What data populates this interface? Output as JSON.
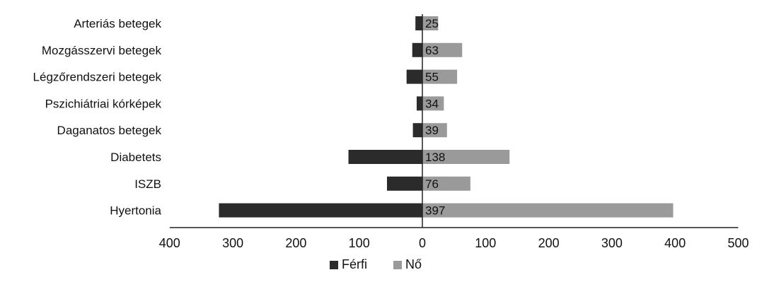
{
  "chart_data": {
    "type": "bar",
    "orientation": "horizontal",
    "categories": [
      "Arteriás betegek",
      "Mozgásszervi betegek",
      "Légzőrendszeri betegek",
      "Pszichiátriai kórképek",
      "Daganatos betegek",
      "Diabetets",
      "ISZB",
      "Hyertonia"
    ],
    "series": [
      {
        "name": "Férfi",
        "color": "#2b2b2b",
        "values": [
          11,
          16,
          25,
          9,
          15,
          117,
          56,
          322
        ],
        "labels": [
          "",
          "",
          "",
          "",
          "",
          "",
          "",
          ""
        ]
      },
      {
        "name": "Nő",
        "color": "#9a9a9a",
        "values": [
          25,
          63,
          55,
          34,
          39,
          138,
          76,
          397
        ],
        "labels": [
          "25",
          "63",
          "55",
          "34",
          "39",
          "138",
          "76",
          "397"
        ]
      }
    ],
    "x_ticks": [
      "400",
      "300",
      "200",
      "100",
      "0",
      "100",
      "200",
      "300",
      "400",
      "500"
    ],
    "xlim": [
      -400,
      500
    ],
    "legend_placement": "bottom",
    "grid": false
  }
}
